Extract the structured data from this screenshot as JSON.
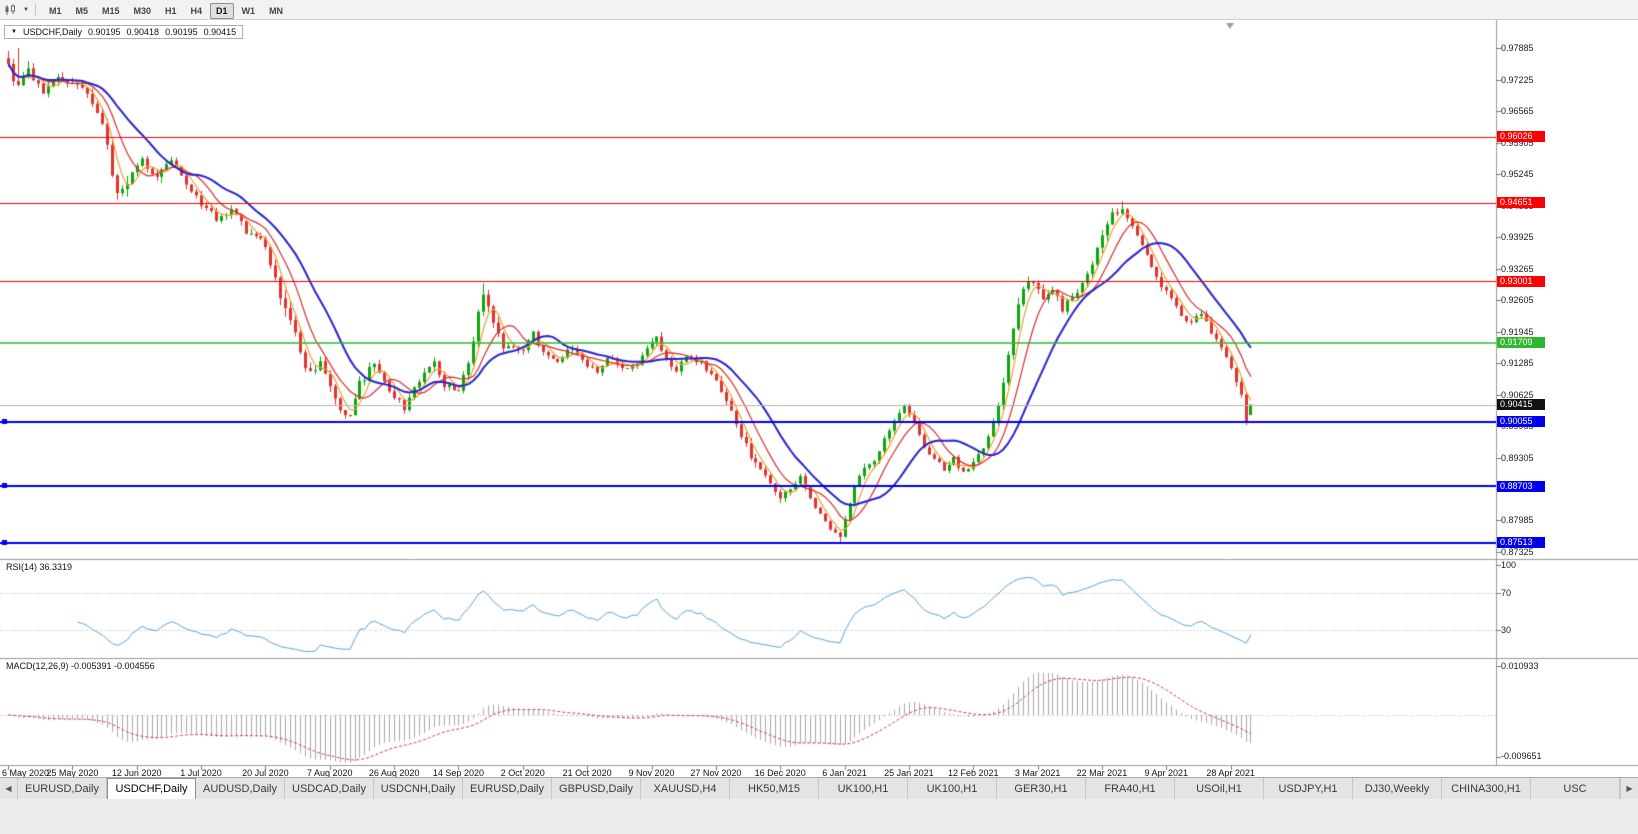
{
  "icons": {
    "caret": "▼"
  },
  "toolbar": {
    "timeframes": [
      {
        "label": "M1",
        "active": false
      },
      {
        "label": "M5",
        "active": false
      },
      {
        "label": "M15",
        "active": false
      },
      {
        "label": "M30",
        "active": false
      },
      {
        "label": "H1",
        "active": false
      },
      {
        "label": "H4",
        "active": false
      },
      {
        "label": "D1",
        "active": true
      },
      {
        "label": "W1",
        "active": false
      },
      {
        "label": "MN",
        "active": false
      }
    ]
  },
  "quote": {
    "symbol": "USDCHF,Daily",
    "open": "0.90195",
    "high": "0.90418",
    "low": "0.90195",
    "close": "0.90415"
  },
  "tabs": {
    "left_arrow": "◀",
    "right_arrow": "▶",
    "items": [
      {
        "label": "EURUSD,Daily",
        "active": false
      },
      {
        "label": "USDCHF,Daily",
        "active": true
      },
      {
        "label": "AUDUSD,Daily",
        "active": false
      },
      {
        "label": "USDCAD,Daily",
        "active": false
      },
      {
        "label": "USDCNH,Daily",
        "active": false
      },
      {
        "label": "EURUSD,Daily",
        "active": false
      },
      {
        "label": "GBPUSD,Daily",
        "active": false
      },
      {
        "label": "XAUUSD,H4",
        "active": false
      },
      {
        "label": "HK50,M15",
        "active": false
      },
      {
        "label": "UK100,H1",
        "active": false
      },
      {
        "label": "UK100,H1",
        "active": false
      },
      {
        "label": "GER30,H1",
        "active": false
      },
      {
        "label": "FRA40,H1",
        "active": false
      },
      {
        "label": "USOil,H1",
        "active": false
      },
      {
        "label": "USDJPY,H1",
        "active": false
      },
      {
        "label": "DJ30,Weekly",
        "active": false
      },
      {
        "label": "CHINA300,H1",
        "active": false
      },
      {
        "label": "USC",
        "active": false
      }
    ]
  },
  "chart_data": {
    "type": "candlestick",
    "symbol": "USDCHF",
    "timeframe": "Daily",
    "bars": 252,
    "price_top": 0.98437,
    "price_bottom": 0.87198,
    "up_color": "#0ea50e",
    "down_color": "#e03333",
    "close_anchors": [
      [
        0,
        0.9755,
        0.003
      ],
      [
        2,
        0.9705,
        0.003
      ],
      [
        4,
        0.9745,
        0.0026
      ],
      [
        7,
        0.9695,
        0.0024
      ],
      [
        10,
        0.973,
        0.0022
      ],
      [
        13,
        0.9718,
        0.002
      ],
      [
        16,
        0.9688,
        0.002
      ],
      [
        19,
        0.963,
        0.0024
      ],
      [
        22,
        0.9478,
        0.0034
      ],
      [
        24,
        0.9502,
        0.003
      ],
      [
        27,
        0.9552,
        0.0026
      ],
      [
        30,
        0.952,
        0.0022
      ],
      [
        33,
        0.9556,
        0.002
      ],
      [
        36,
        0.9502,
        0.002
      ],
      [
        39,
        0.9465,
        0.0018
      ],
      [
        42,
        0.9432,
        0.0018
      ],
      [
        45,
        0.9452,
        0.0016
      ],
      [
        48,
        0.9405,
        0.0018
      ],
      [
        51,
        0.9392,
        0.0018
      ],
      [
        53,
        0.934,
        0.0026
      ],
      [
        55,
        0.9272,
        0.003
      ],
      [
        57,
        0.9212,
        0.003
      ],
      [
        59,
        0.9152,
        0.0028
      ],
      [
        61,
        0.9102,
        0.0026
      ],
      [
        63,
        0.9126,
        0.0022
      ],
      [
        65,
        0.9076,
        0.0022
      ],
      [
        67,
        0.9036,
        0.0022
      ],
      [
        69,
        0.9012,
        0.002
      ],
      [
        71,
        0.9086,
        0.0022
      ],
      [
        74,
        0.9126,
        0.002
      ],
      [
        76,
        0.9086,
        0.0018
      ],
      [
        78,
        0.9062,
        0.0018
      ],
      [
        80,
        0.9032,
        0.0018
      ],
      [
        83,
        0.9092,
        0.0018
      ],
      [
        86,
        0.9126,
        0.0018
      ],
      [
        88,
        0.9082,
        0.0016
      ],
      [
        91,
        0.9072,
        0.0016
      ],
      [
        93,
        0.9122,
        0.0018
      ],
      [
        95,
        0.9232,
        0.0024
      ],
      [
        96,
        0.9278,
        0.0022
      ],
      [
        98,
        0.9216,
        0.0022
      ],
      [
        100,
        0.9156,
        0.002
      ],
      [
        102,
        0.9166,
        0.0016
      ],
      [
        104,
        0.9152,
        0.0016
      ],
      [
        106,
        0.919,
        0.0016
      ],
      [
        108,
        0.9152,
        0.0015
      ],
      [
        111,
        0.9136,
        0.0015
      ],
      [
        114,
        0.9162,
        0.0014
      ],
      [
        117,
        0.9126,
        0.0014
      ],
      [
        119,
        0.9106,
        0.0014
      ],
      [
        121,
        0.9142,
        0.0014
      ],
      [
        124,
        0.912,
        0.0014
      ],
      [
        127,
        0.9126,
        0.0014
      ],
      [
        129,
        0.9156,
        0.0018
      ],
      [
        131,
        0.9186,
        0.0022
      ],
      [
        133,
        0.9132,
        0.002
      ],
      [
        135,
        0.9116,
        0.0016
      ],
      [
        137,
        0.9146,
        0.0014
      ],
      [
        140,
        0.913,
        0.0014
      ],
      [
        143,
        0.9092,
        0.0016
      ],
      [
        145,
        0.9052,
        0.0018
      ],
      [
        147,
        0.9002,
        0.0018
      ],
      [
        149,
        0.8956,
        0.0018
      ],
      [
        151,
        0.8916,
        0.0018
      ],
      [
        153,
        0.8892,
        0.0016
      ],
      [
        156,
        0.8846,
        0.0016
      ],
      [
        158,
        0.8866,
        0.0016
      ],
      [
        160,
        0.8892,
        0.0016
      ],
      [
        162,
        0.8846,
        0.0016
      ],
      [
        164,
        0.8816,
        0.0016
      ],
      [
        166,
        0.8786,
        0.0018
      ],
      [
        168,
        0.8766,
        0.0016
      ],
      [
        169,
        0.8796,
        0.0016
      ],
      [
        171,
        0.8866,
        0.002
      ],
      [
        173,
        0.8906,
        0.0018
      ],
      [
        175,
        0.8926,
        0.0016
      ],
      [
        177,
        0.8966,
        0.0016
      ],
      [
        179,
        0.9012,
        0.0016
      ],
      [
        181,
        0.9042,
        0.0016
      ],
      [
        183,
        0.9002,
        0.0016
      ],
      [
        185,
        0.8952,
        0.0016
      ],
      [
        187,
        0.8932,
        0.0014
      ],
      [
        189,
        0.8906,
        0.0014
      ],
      [
        191,
        0.8932,
        0.0014
      ],
      [
        193,
        0.8896,
        0.0014
      ],
      [
        195,
        0.8922,
        0.0014
      ],
      [
        197,
        0.8952,
        0.0014
      ],
      [
        199,
        0.9002,
        0.0016
      ],
      [
        201,
        0.9082,
        0.0022
      ],
      [
        203,
        0.9202,
        0.0028
      ],
      [
        205,
        0.9282,
        0.0026
      ],
      [
        207,
        0.9302,
        0.0022
      ],
      [
        209,
        0.9256,
        0.002
      ],
      [
        211,
        0.9282,
        0.0018
      ],
      [
        213,
        0.9242,
        0.0018
      ],
      [
        215,
        0.9266,
        0.0016
      ],
      [
        217,
        0.9292,
        0.0016
      ],
      [
        219,
        0.9342,
        0.0018
      ],
      [
        221,
        0.9402,
        0.002
      ],
      [
        223,
        0.9442,
        0.002
      ],
      [
        225,
        0.9456,
        0.0018
      ],
      [
        227,
        0.9422,
        0.0018
      ],
      [
        229,
        0.9372,
        0.0018
      ],
      [
        231,
        0.9332,
        0.0016
      ],
      [
        233,
        0.9292,
        0.0016
      ],
      [
        235,
        0.9266,
        0.0016
      ],
      [
        237,
        0.9232,
        0.0016
      ],
      [
        239,
        0.9212,
        0.0014
      ],
      [
        241,
        0.9236,
        0.0014
      ],
      [
        243,
        0.9192,
        0.0014
      ],
      [
        245,
        0.9162,
        0.0014
      ],
      [
        247,
        0.9116,
        0.0016
      ],
      [
        249,
        0.9062,
        0.0018
      ],
      [
        250,
        0.9012,
        0.0014
      ],
      [
        251,
        0.90415,
        0.0008
      ]
    ],
    "pins": [
      {
        "i": 2,
        "h": 0.9789
      },
      {
        "i": 96,
        "h": 0.9296
      },
      {
        "i": 168,
        "l": 0.8752
      },
      {
        "i": 225,
        "h": 0.9468
      },
      {
        "i": 250,
        "l": 0.8998
      },
      {
        "i": 251,
        "o": 0.90195,
        "h": 0.90418,
        "l": 0.90195,
        "c": 0.90415
      }
    ],
    "ma_overlays": [
      {
        "period": 4,
        "color": "#f0a030",
        "width": 1.2
      },
      {
        "period": 8,
        "color": "#d92f2f",
        "width": 1.2
      },
      {
        "period": 16,
        "color": "#2626cc",
        "width": 2
      }
    ],
    "levels": [
      {
        "label": "0.96026",
        "price": 0.96026,
        "color": "#ff0000",
        "thickness": 1,
        "handle": false
      },
      {
        "label": "0.94651",
        "price": 0.94651,
        "color": "#ff0000",
        "thickness": 1,
        "handle": false
      },
      {
        "label": "0.93001",
        "price": 0.93001,
        "color": "#ff0000",
        "thickness": 1,
        "handle": false
      },
      {
        "label": "0.91709",
        "price": 0.91709,
        "color": "#2eb82e",
        "thickness": 1.5,
        "handle": false
      },
      {
        "label": "0.90055",
        "price": 0.90055,
        "color": "#0000ee",
        "thickness": 2,
        "handle": true
      },
      {
        "label": "0.88703",
        "price": 0.88703,
        "color": "#0000ee",
        "thickness": 2,
        "handle": true
      },
      {
        "label": "0.87513",
        "price": 0.87513,
        "color": "#0000ee",
        "thickness": 2,
        "handle": true
      }
    ],
    "current_price": {
      "label": "0.90415",
      "value": 0.90415
    },
    "y_axis_labels": [
      "0.97885",
      "0.97225",
      "0.96565",
      "0.95905",
      "0.95245",
      "0.94585",
      "0.93925",
      "0.93265",
      "0.92605",
      "0.91945",
      "0.91285",
      "0.90625",
      "0.89965",
      "0.89305",
      "0.88645",
      "0.87985",
      "0.87325"
    ],
    "x_axis_labels": [
      {
        "label": "6 May 2020",
        "bar": 0
      },
      {
        "label": "25 May 2020",
        "bar": 13
      },
      {
        "label": "12 Jun 2020",
        "bar": 26
      },
      {
        "label": "1 Jul 2020",
        "bar": 39
      },
      {
        "label": "20 Jul 2020",
        "bar": 52
      },
      {
        "label": "7 Aug 2020",
        "bar": 65
      },
      {
        "label": "26 Aug 2020",
        "bar": 78
      },
      {
        "label": "14 Sep 2020",
        "bar": 91
      },
      {
        "label": "2 Oct 2020",
        "bar": 104
      },
      {
        "label": "21 Oct 2020",
        "bar": 117
      },
      {
        "label": "9 Nov 2020",
        "bar": 130
      },
      {
        "label": "27 Nov 2020",
        "bar": 143
      },
      {
        "label": "16 Dec 2020",
        "bar": 156
      },
      {
        "label": "6 Jan 2021",
        "bar": 169
      },
      {
        "label": "25 Jan 2021",
        "bar": 182
      },
      {
        "label": "12 Feb 2021",
        "bar": 195
      },
      {
        "label": "3 Mar 2021",
        "bar": 208
      },
      {
        "label": "22 Mar 2021",
        "bar": 221
      },
      {
        "label": "9 Apr 2021",
        "bar": 234
      },
      {
        "label": "28 Apr 2021",
        "bar": 247
      }
    ],
    "indicators": {
      "rsi": {
        "label": "RSI(14) 36.3319",
        "period": 14,
        "line_color": "#5aa7d8",
        "levels": [
          {
            "label": "100",
            "value": 100
          },
          {
            "label": "70",
            "value": 70
          },
          {
            "label": "30",
            "value": 30
          }
        ]
      },
      "macd": {
        "label": "MACD(12,26,9) -0.005391 -0.004556",
        "fast": 12,
        "slow": 26,
        "signal": 9,
        "bar_color": "#aaaaaa",
        "signal_color": "#cc4444",
        "axis_top": "0.010933",
        "axis_bottom": "-0.009651"
      }
    }
  }
}
